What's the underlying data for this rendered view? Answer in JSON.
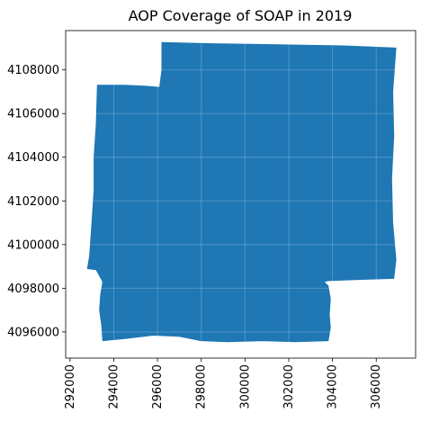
{
  "chart_data": {
    "type": "map",
    "title": "AOP Coverage of SOAP in 2019",
    "xlabel": "",
    "ylabel": "",
    "xlim": [
      291800,
      307800
    ],
    "ylim": [
      4094800,
      4109800
    ],
    "x_ticks": [
      292000,
      294000,
      296000,
      298000,
      300000,
      302000,
      304000,
      306000
    ],
    "y_ticks": [
      4096000,
      4098000,
      4100000,
      4102000,
      4104000,
      4106000,
      4108000
    ],
    "x_tick_labels": [
      "292000",
      "294000",
      "296000",
      "298000",
      "300000",
      "302000",
      "304000",
      "306000"
    ],
    "y_tick_labels": [
      "4096000",
      "4098000",
      "4100000",
      "4102000",
      "4104000",
      "4106000",
      "4108000"
    ],
    "fill_color": "#1f77b4",
    "grid": true,
    "coverage_polygon": [
      [
        296200,
        4109250
      ],
      [
        298500,
        4109200
      ],
      [
        301500,
        4109150
      ],
      [
        304500,
        4109100
      ],
      [
        306900,
        4109000
      ],
      [
        306750,
        4107000
      ],
      [
        306800,
        4105000
      ],
      [
        306700,
        4103000
      ],
      [
        306750,
        4101000
      ],
      [
        306900,
        4099300
      ],
      [
        306800,
        4098450
      ],
      [
        305200,
        4098400
      ],
      [
        303800,
        4098350
      ],
      [
        303600,
        4098300
      ],
      [
        303800,
        4098100
      ],
      [
        303900,
        4097500
      ],
      [
        303850,
        4096800
      ],
      [
        303900,
        4096200
      ],
      [
        303800,
        4095600
      ],
      [
        302300,
        4095550
      ],
      [
        300800,
        4095600
      ],
      [
        299200,
        4095550
      ],
      [
        298000,
        4095600
      ],
      [
        297000,
        4095800
      ],
      [
        295800,
        4095850
      ],
      [
        294500,
        4095700
      ],
      [
        293500,
        4095600
      ],
      [
        293450,
        4096300
      ],
      [
        293350,
        4097000
      ],
      [
        293400,
        4097700
      ],
      [
        293500,
        4098300
      ],
      [
        293200,
        4098850
      ],
      [
        292800,
        4098900
      ],
      [
        292900,
        4099500
      ],
      [
        293000,
        4101000
      ],
      [
        293100,
        4102500
      ],
      [
        293100,
        4104000
      ],
      [
        293200,
        4105500
      ],
      [
        293250,
        4107300
      ],
      [
        294500,
        4107300
      ],
      [
        295500,
        4107250
      ],
      [
        296100,
        4107200
      ],
      [
        296200,
        4108000
      ]
    ]
  }
}
